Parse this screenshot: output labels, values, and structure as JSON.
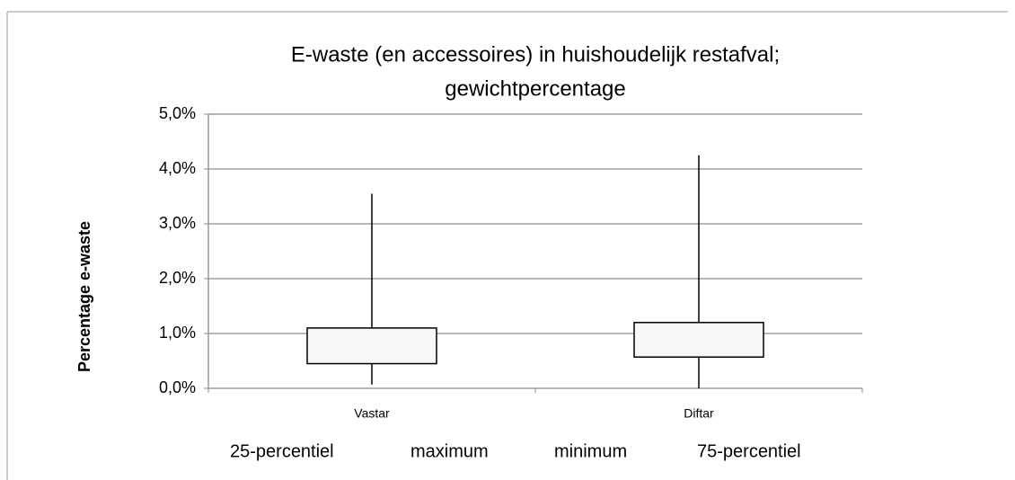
{
  "chart_data": {
    "type": "box",
    "title": [
      "E-waste (en accessoires) in huishoudelijk restafval;",
      "gewichtpercentage"
    ],
    "y_label": "Percentage e-waste",
    "categories": [
      "Vastar",
      "Diftar"
    ],
    "series": [
      {
        "name": "25-percentiel",
        "values": [
          0.45,
          0.57
        ]
      },
      {
        "name": "maximum",
        "values": [
          3.55,
          4.25
        ]
      },
      {
        "name": "minimum",
        "values": [
          0.07,
          0.0
        ]
      },
      {
        "name": "75-percentiel",
        "values": [
          1.1,
          1.2
        ]
      }
    ],
    "ylim": [
      0,
      5
    ],
    "yticks": [
      {
        "value": 0,
        "label": "0,0%"
      },
      {
        "value": 1,
        "label": "1,0%"
      },
      {
        "value": 2,
        "label": "2,0%"
      },
      {
        "value": 3,
        "label": "3,0%"
      },
      {
        "value": 4,
        "label": "4,0%"
      },
      {
        "value": 5,
        "label": "5,0%"
      }
    ],
    "grid": true
  }
}
